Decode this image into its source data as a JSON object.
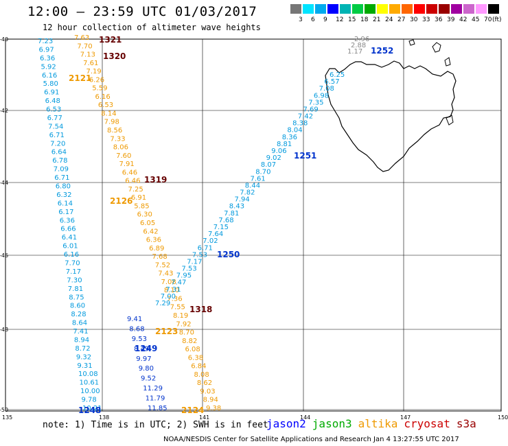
{
  "header": {
    "title": "12:00 – 23:59 UTC 01/03/2017",
    "subtitle": "12 hour collection of altimeter wave heights"
  },
  "scale": {
    "unit": "(ft)",
    "colors": [
      "#777777",
      "#00e4ff",
      "#00aaee",
      "#0000ff",
      "#00b4b4",
      "#00cc44",
      "#00aa00",
      "#ffff00",
      "#ffaa00",
      "#ff6600",
      "#ff0000",
      "#cc0000",
      "#990000",
      "#a000a0",
      "#cc66cc",
      "#ff99ff",
      "#000000"
    ],
    "labels": [
      "3",
      "6",
      "9",
      "12",
      "15",
      "18",
      "21",
      "24",
      "27",
      "30",
      "33",
      "36",
      "39",
      "42",
      "45",
      "70"
    ]
  },
  "axes": {
    "lat_labels": [
      "-40",
      "-42",
      "-44",
      "-46",
      "-48",
      "-50"
    ],
    "lon_labels": [
      "135",
      "138",
      "141",
      "144",
      "147",
      "150"
    ]
  },
  "map_data": {
    "region": "Tasmania / Southern Ocean",
    "tracks": [
      {
        "satellite": "jason3",
        "label": "2121",
        "color": "#0099dd",
        "values": [
          "7.23",
          "6.97",
          "6.36",
          "5.92",
          "6.16",
          "5.80",
          "6.91",
          "6.48",
          "6.53",
          "6.77",
          "7.54",
          "6.71",
          "7.20",
          "6.64",
          "6.78",
          "7.09",
          "6.71",
          "6.80",
          "6.32",
          "6.14",
          "6.17",
          "6.36",
          "6.66",
          "6.41",
          "6.01",
          "6.16",
          "7.70",
          "7.17",
          "7.30",
          "7.81",
          "8.75",
          "8.60",
          "8.28",
          "8.64",
          "7.41",
          "8.94",
          "8.72",
          "9.32",
          "9.31",
          "10.08",
          "10.61",
          "10.00",
          "9.78",
          "10.21"
        ]
      },
      {
        "satellite": "jason2",
        "label": "1248",
        "color": "#0033cc",
        "values": [
          "9.41",
          "8.68",
          "9.53",
          "8.49",
          "9.97",
          "9.80",
          "9.52",
          "11.29",
          "11.79",
          "11.85"
        ]
      },
      {
        "satellite": "altika",
        "label": "2124",
        "color": "#ee9900",
        "values": [
          "7.63",
          "7.70",
          "7.13",
          "7.61",
          "7.19",
          "6.26",
          "5.59",
          "6.16",
          "6.53",
          "8.14",
          "7.98",
          "8.56",
          "7.33",
          "8.06",
          "7.60",
          "7.91",
          "6.46",
          "6.46",
          "7.25",
          "6.91",
          "5.85",
          "6.30",
          "6.05",
          "6.42",
          "6.36",
          "6.89",
          "7.68",
          "7.52",
          "7.43",
          "7.08",
          "8.10",
          "7.36",
          "7.55",
          "8.19",
          "7.92",
          "8.70",
          "8.82",
          "6.08",
          "6.38",
          "6.84",
          "8.08",
          "8.62",
          "9.03",
          "8.94",
          "9.38"
        ]
      },
      {
        "satellite": "jason2",
        "label": "1250",
        "color": "#0099dd",
        "values": [
          "6.25",
          "6.57",
          "7.08",
          "6.98",
          "7.35",
          "7.69",
          "7.42",
          "8.38",
          "8.04",
          "8.36",
          "8.81",
          "9.06",
          "9.02",
          "8.07",
          "8.70",
          "7.61",
          "8.44",
          "7.82",
          "7.94",
          "8.43",
          "7.81",
          "7.68",
          "7.15",
          "7.64",
          "7.02",
          "6.71",
          "7.53",
          "7.17",
          "7.53",
          "7.95",
          "7.47",
          "7.31",
          "7.00",
          "7.29"
        ]
      }
    ],
    "orbit_labels": [
      {
        "text": "1321",
        "color": "#660000"
      },
      {
        "text": "1320",
        "color": "#660000"
      },
      {
        "text": "2121",
        "color": "#ee9900"
      },
      {
        "text": "1319",
        "color": "#660000"
      },
      {
        "text": "2126",
        "color": "#ee9900"
      },
      {
        "text": "1250",
        "color": "#0033cc"
      },
      {
        "text": "1251",
        "color": "#0033cc"
      },
      {
        "text": "1252",
        "color": "#0033cc"
      },
      {
        "text": "1318",
        "color": "#660000"
      },
      {
        "text": "2123",
        "color": "#ee9900"
      },
      {
        "text": "1249",
        "color": "#0033cc"
      },
      {
        "text": "1248",
        "color": "#0033cc"
      },
      {
        "text": "2124",
        "color": "#ee9900"
      }
    ],
    "grey_values": [
      "2.96",
      "2.88",
      "1.17"
    ]
  },
  "footer": {
    "note": "note: 1) Time is in UTC; 2) SWH is in feet",
    "legend": [
      {
        "name": "jason2",
        "color": "#0000ff"
      },
      {
        "name": "jason3",
        "color": "#00aa00"
      },
      {
        "name": "altika",
        "color": "#ee9900"
      },
      {
        "name": "cryosat",
        "color": "#cc0000"
      },
      {
        "name": "s3a",
        "color": "#990000"
      }
    ],
    "credit": "NOAA/NESDIS Center for Satellite Applications and Research   Jan  4 13:27:55 UTC 2017"
  }
}
